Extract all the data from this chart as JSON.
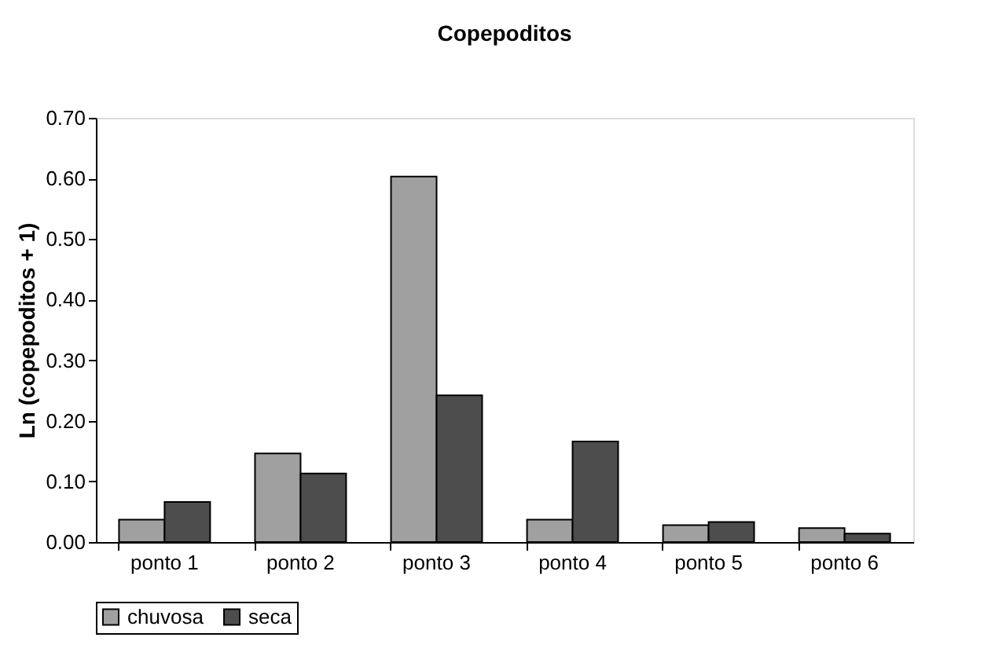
{
  "chart_data": {
    "type": "bar",
    "title": "Copepoditos",
    "ylabel": "Ln (copepoditos + 1)",
    "categories": [
      "ponto 1",
      "ponto 2",
      "ponto 3",
      "ponto 4",
      "ponto 5",
      "ponto 6"
    ],
    "series": [
      {
        "name": "chuvosa",
        "color": "#a0a0a0",
        "values": [
          0.037,
          0.146,
          0.603,
          0.037,
          0.028,
          0.023
        ]
      },
      {
        "name": "seca",
        "color": "#4d4d4d",
        "values": [
          0.066,
          0.113,
          0.242,
          0.166,
          0.033,
          0.014
        ]
      }
    ],
    "ylim": [
      0,
      0.7
    ],
    "yticks": [
      {
        "value": 0,
        "label": "0.00"
      },
      {
        "value": 0.1,
        "label": "0.10"
      },
      {
        "value": 0.2,
        "label": "0.20"
      },
      {
        "value": 0.3,
        "label": "0.30"
      },
      {
        "value": 0.4,
        "label": "0.40"
      },
      {
        "value": 0.5,
        "label": "0.50"
      },
      {
        "value": 0.6,
        "label": "0.60"
      },
      {
        "value": 0.7,
        "label": "0.70"
      }
    ],
    "grid": false,
    "legend": "bottom"
  }
}
